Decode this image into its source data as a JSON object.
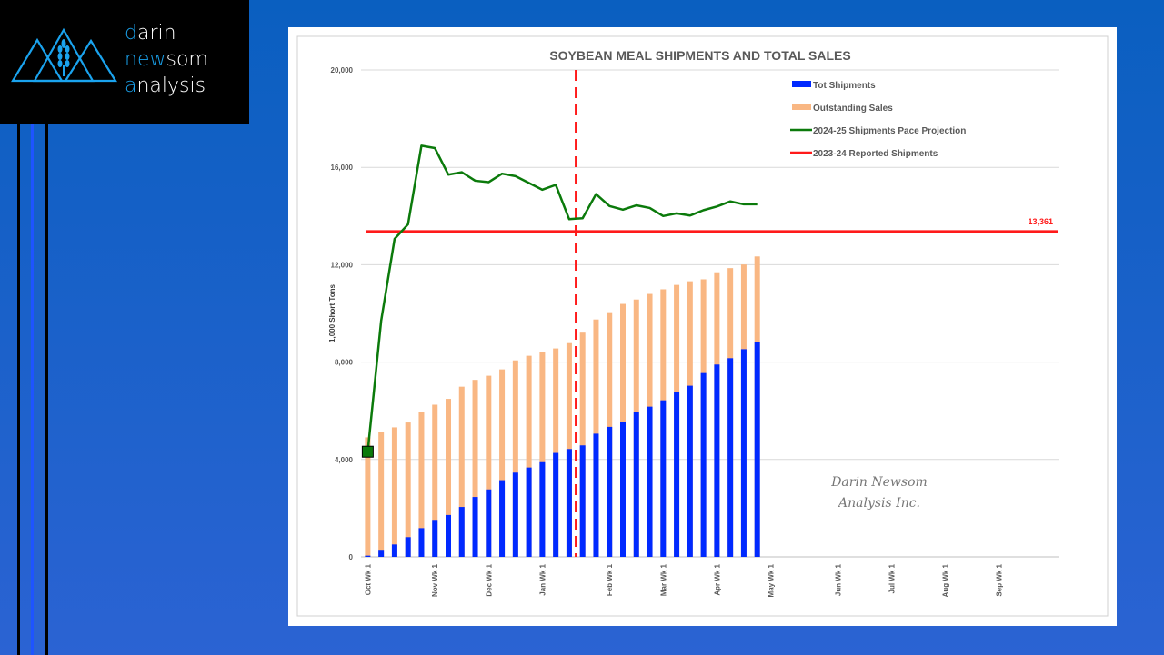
{
  "logo": {
    "line1_initial": "d",
    "line1_rest": "arin",
    "line2_initial": "n",
    "line2_mid": "ew",
    "line2_rest": "som",
    "line3_initial": "a",
    "line3_rest": "nalysis"
  },
  "colors": {
    "shipments": "#0029ff",
    "outstanding": "#f9b783",
    "projection": "#0b7a0b",
    "reported": "#ff1a1a",
    "grid": "#d9d9d9"
  },
  "chart_data": {
    "type": "bar",
    "title": "SOYBEAN MEAL SHIPMENTS AND TOTAL SALES",
    "ylabel": "1,000 Short Tons",
    "xlabel": "",
    "ylim": [
      0,
      20000
    ],
    "yticks": [
      "0",
      "4,000",
      "8,000",
      "12,000",
      "16,000",
      "20,000"
    ],
    "ytick_values": [
      0,
      4000,
      8000,
      12000,
      16000,
      20000
    ],
    "weeks_total": 52,
    "xtick_labels": [
      {
        "week": 0,
        "label": "Oct Wk 1"
      },
      {
        "week": 5,
        "label": "Nov Wk 1"
      },
      {
        "week": 9,
        "label": "Dec Wk 1"
      },
      {
        "week": 13,
        "label": "Jan Wk 1"
      },
      {
        "week": 18,
        "label": "Feb Wk 1"
      },
      {
        "week": 22,
        "label": "Mar Wk 1"
      },
      {
        "week": 26,
        "label": "Apr Wk 1"
      },
      {
        "week": 30,
        "label": "May Wk 1"
      },
      {
        "week": 35,
        "label": "Jun Wk 1"
      },
      {
        "week": 39,
        "label": "Jul Wk 1"
      },
      {
        "week": 43,
        "label": "Aug Wk 1"
      },
      {
        "week": 47,
        "label": "Sep Wk 1"
      }
    ],
    "legend_position": "top-right",
    "grid": true,
    "series": [
      {
        "name": "Tot Shipments",
        "kind": "stacked-bar",
        "values": [
          50,
          290,
          510,
          810,
          1180,
          1520,
          1720,
          2050,
          2460,
          2770,
          3150,
          3460,
          3670,
          3890,
          4270,
          4430,
          4580,
          5060,
          5340,
          5560,
          5950,
          6170,
          6430,
          6770,
          7030,
          7550,
          7900,
          8160,
          8530,
          8830
        ]
      },
      {
        "name": "Outstanding Sales",
        "kind": "stacked-bar",
        "totals": [
          4910,
          5130,
          5320,
          5520,
          5950,
          6250,
          6490,
          6990,
          7270,
          7440,
          7700,
          8070,
          8260,
          8420,
          8560,
          8780,
          9210,
          9750,
          10050,
          10390,
          10570,
          10800,
          10990,
          11170,
          11320,
          11400,
          11690,
          11860,
          12010,
          12340
        ]
      },
      {
        "name": "2024-25 Shipments Pace Projection",
        "kind": "line",
        "values": [
          4320,
          9700,
          13060,
          13660,
          16890,
          16790,
          15700,
          15800,
          15450,
          15390,
          15740,
          15640,
          15360,
          15080,
          15280,
          13870,
          13910,
          14900,
          14410,
          14260,
          14440,
          14330,
          14000,
          14110,
          14020,
          14240,
          14390,
          14600,
          14480,
          14480
        ]
      },
      {
        "name": "2023-24 Reported Shipments",
        "kind": "hline",
        "value": 13361,
        "label": "13,361"
      }
    ],
    "current_week_marker": 15.5,
    "watermark": [
      "Darin Newsom",
      "Analysis Inc."
    ]
  }
}
